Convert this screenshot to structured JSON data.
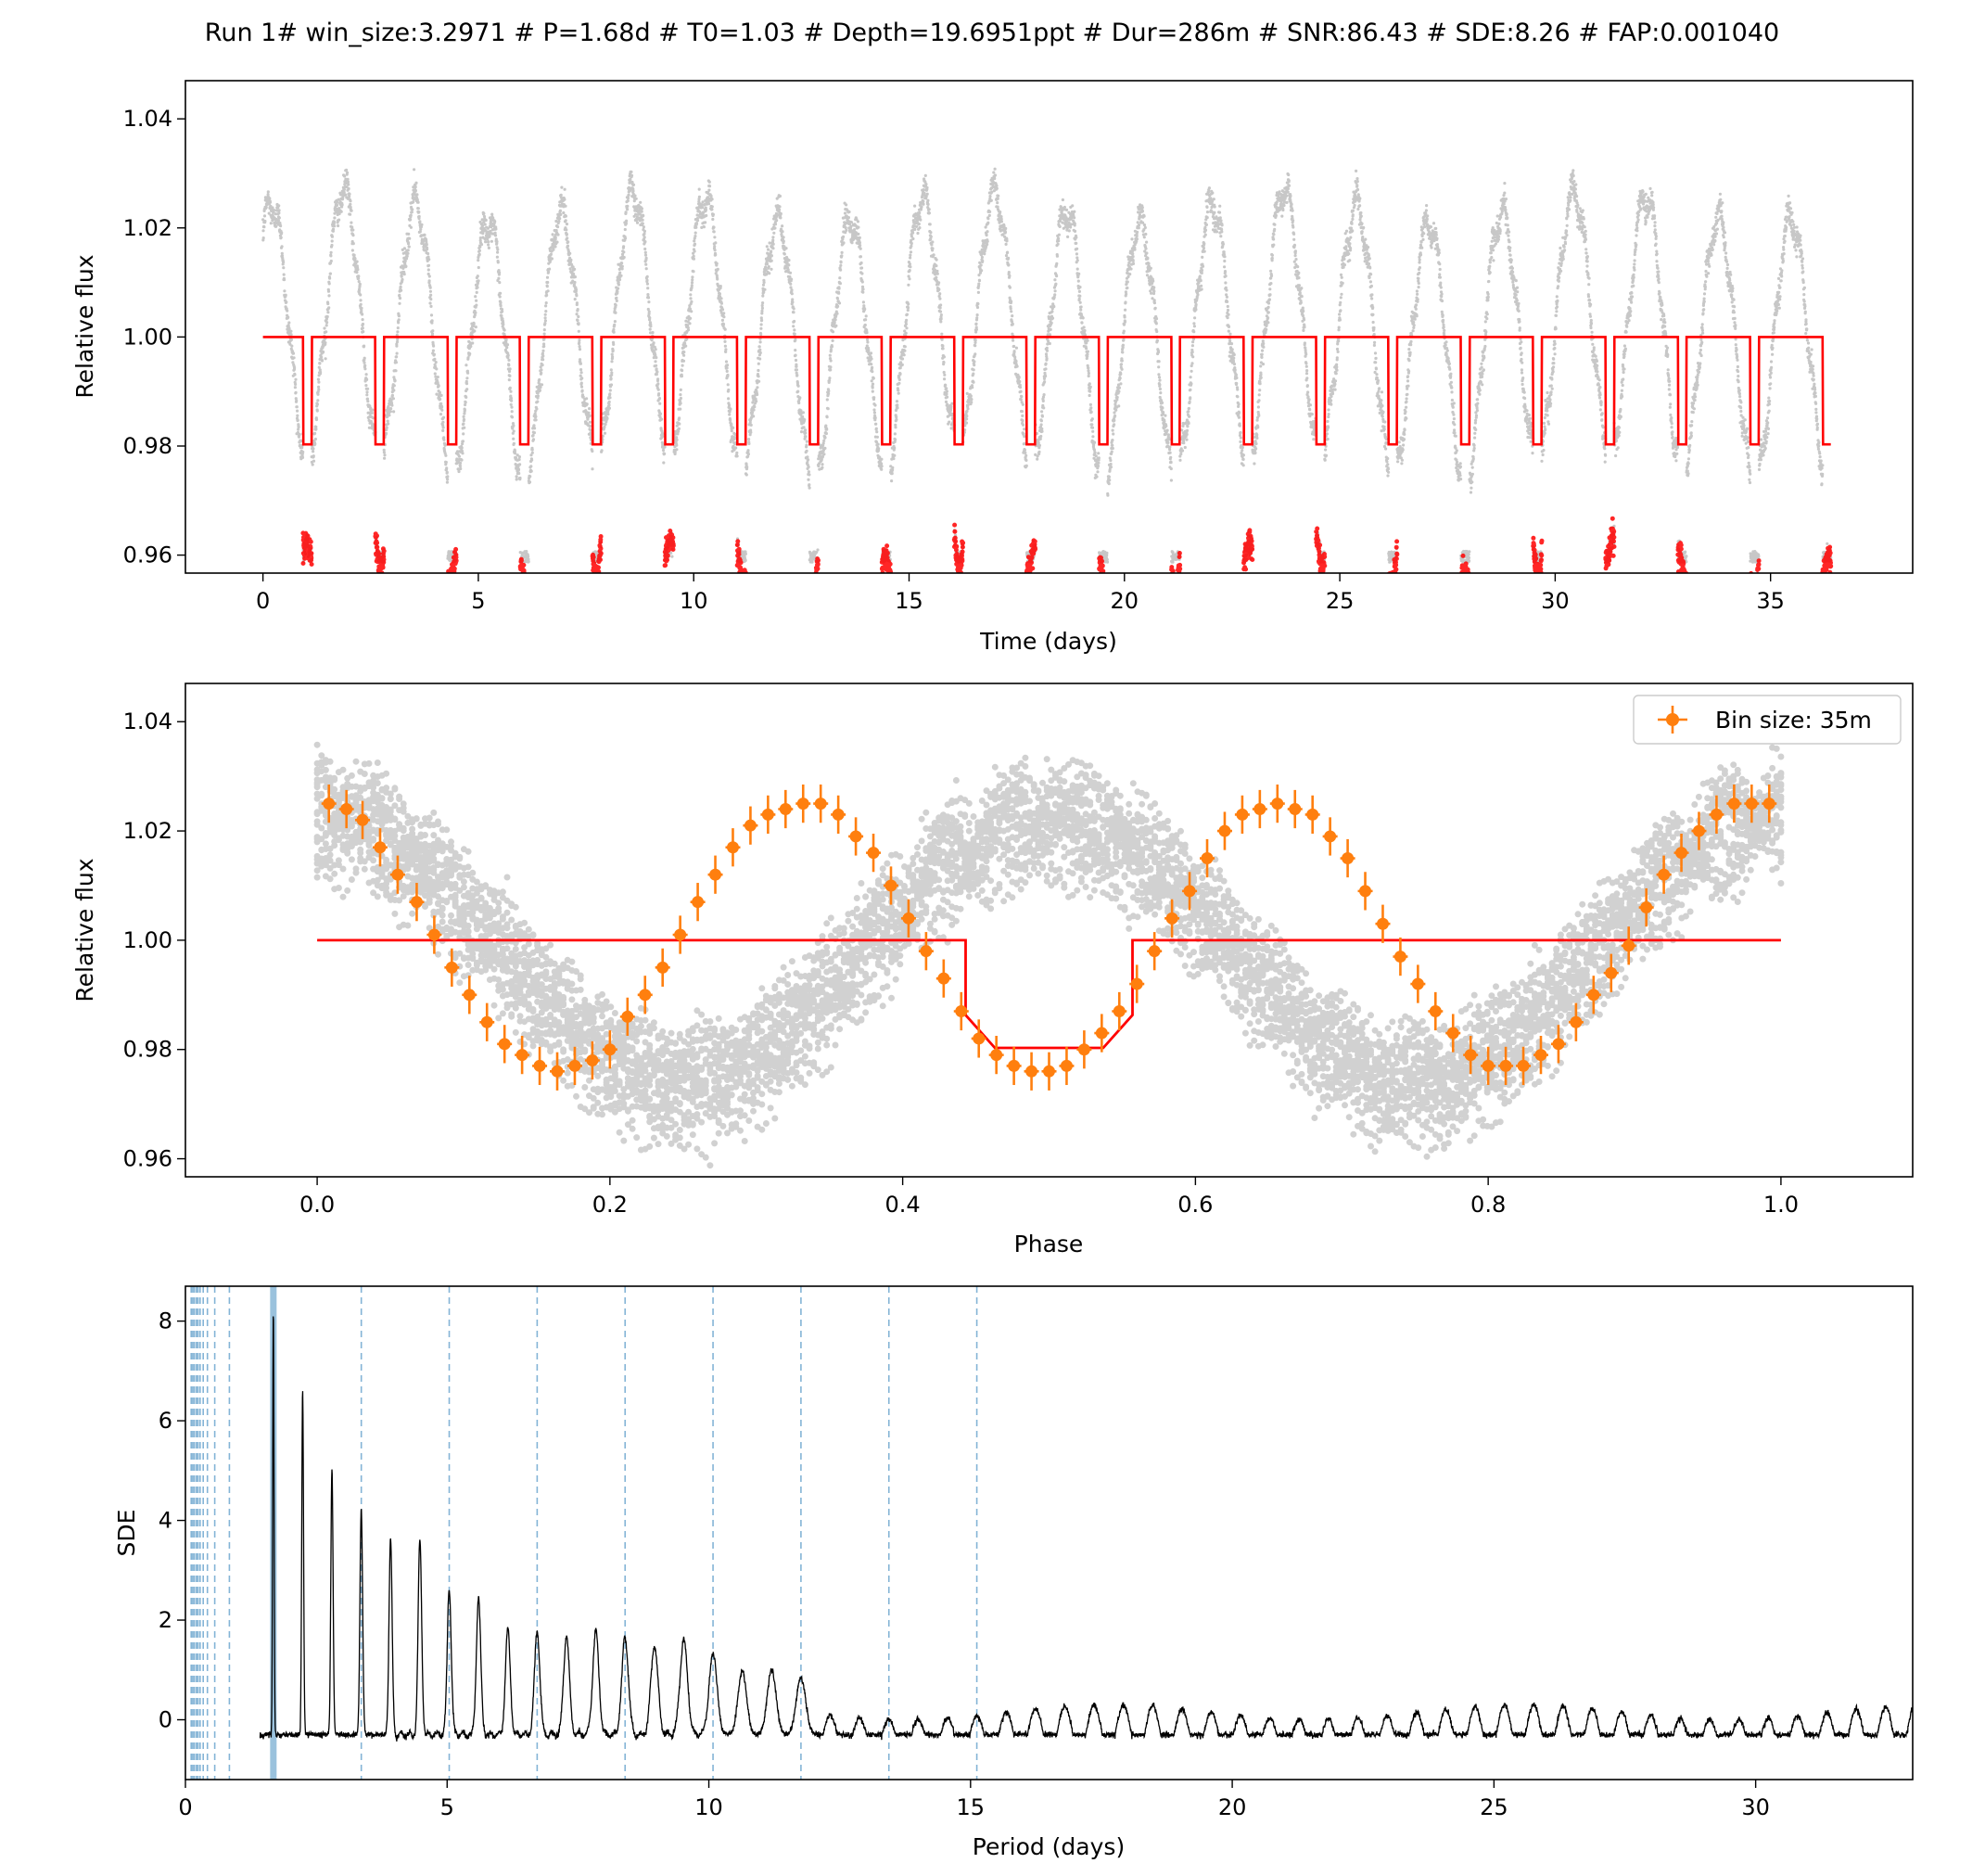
{
  "figure": {
    "title": "Run 1# win_size:3.2971 # P=1.68d # T0=1.03 # Depth=19.6951ppt # Dur=286m # SNR:86.43 # SDE:8.26 # FAP:0.001040"
  },
  "colors": {
    "data_points": "#000000",
    "model": "#ff0000",
    "binned": "#ff7f0e",
    "period_lines": "#1f77b4",
    "periodogram": "#000000"
  },
  "chart_data": [
    {
      "type": "scatter",
      "name": "light-curve",
      "xlabel": "Time (days)",
      "ylabel": "Relative flux",
      "xlim": [
        -1.8,
        38.3
      ],
      "ylim": [
        0.9567,
        1.047
      ],
      "xticks": [
        0,
        5,
        10,
        15,
        20,
        25,
        30,
        35
      ],
      "xtick_labels": [
        "0",
        "5",
        "10",
        "15",
        "20",
        "25",
        "30",
        "35"
      ],
      "yticks": [
        0.96,
        0.98,
        1.0,
        1.02,
        1.04
      ],
      "ytick_labels": [
        "0.96",
        "0.98",
        "1.00",
        "1.02",
        "1.04"
      ],
      "time_range": [
        0.0,
        36.4
      ],
      "rotation_period_days": 1.68,
      "rotation_amplitude": 0.024,
      "transit_model": {
        "period": 1.68,
        "t0": 1.03,
        "depth": 0.0197,
        "duration_days": 0.199,
        "baseline": 1.0
      }
    },
    {
      "type": "scatter",
      "name": "phase-folded",
      "xlabel": "Phase",
      "ylabel": "Relative flux",
      "xlim": [
        -0.09,
        1.09
      ],
      "ylim": [
        0.9567,
        1.047
      ],
      "xticks": [
        0.0,
        0.2,
        0.4,
        0.6,
        0.8,
        1.0
      ],
      "xtick_labels": [
        "0.0",
        "0.2",
        "0.4",
        "0.6",
        "0.8",
        "1.0"
      ],
      "yticks": [
        0.96,
        0.98,
        1.0,
        1.02,
        1.04
      ],
      "ytick_labels": [
        "0.96",
        "0.98",
        "1.00",
        "1.02",
        "1.04"
      ],
      "legend": {
        "label": "Bin size: 35m",
        "position": "upper right"
      },
      "model": {
        "baseline": 1.0,
        "transit_start": 0.443,
        "transit_end": 0.557,
        "depth": 0.0197
      },
      "binned": {
        "phase": [
          0.008,
          0.02,
          0.031,
          0.043,
          0.055,
          0.068,
          0.08,
          0.092,
          0.104,
          0.116,
          0.128,
          0.14,
          0.152,
          0.164,
          0.176,
          0.188,
          0.2,
          0.212,
          0.224,
          0.236,
          0.248,
          0.26,
          0.272,
          0.284,
          0.296,
          0.308,
          0.32,
          0.332,
          0.344,
          0.356,
          0.368,
          0.38,
          0.392,
          0.404,
          0.416,
          0.428,
          0.44,
          0.452,
          0.464,
          0.476,
          0.488,
          0.5,
          0.512,
          0.524,
          0.536,
          0.548,
          0.56,
          0.572,
          0.584,
          0.596,
          0.608,
          0.62,
          0.632,
          0.644,
          0.656,
          0.668,
          0.68,
          0.692,
          0.704,
          0.716,
          0.728,
          0.74,
          0.752,
          0.764,
          0.776,
          0.788,
          0.8,
          0.812,
          0.824,
          0.836,
          0.848,
          0.86,
          0.872,
          0.884,
          0.896,
          0.908,
          0.92,
          0.932,
          0.944,
          0.956,
          0.968,
          0.98,
          0.992
        ],
        "flux": [
          1.025,
          1.024,
          1.022,
          1.017,
          1.012,
          1.007,
          1.001,
          0.995,
          0.99,
          0.985,
          0.981,
          0.979,
          0.977,
          0.976,
          0.977,
          0.978,
          0.98,
          0.986,
          0.99,
          0.995,
          1.001,
          1.007,
          1.012,
          1.017,
          1.021,
          1.023,
          1.024,
          1.025,
          1.025,
          1.023,
          1.019,
          1.016,
          1.01,
          1.004,
          0.998,
          0.993,
          0.987,
          0.982,
          0.979,
          0.977,
          0.976,
          0.976,
          0.977,
          0.98,
          0.983,
          0.987,
          0.992,
          0.998,
          1.004,
          1.009,
          1.015,
          1.02,
          1.023,
          1.024,
          1.025,
          1.024,
          1.023,
          1.019,
          1.015,
          1.009,
          1.003,
          0.997,
          0.992,
          0.987,
          0.983,
          0.979,
          0.977,
          0.977,
          0.977,
          0.979,
          0.981,
          0.985,
          0.99,
          0.994,
          0.999,
          1.006,
          1.012,
          1.016,
          1.02,
          1.023,
          1.025,
          1.025,
          1.025
        ],
        "err": [
          0.0035,
          0.0035,
          0.0035,
          0.0035,
          0.0035,
          0.0035,
          0.0035,
          0.0035,
          0.0035,
          0.0035,
          0.0035,
          0.0035,
          0.0035,
          0.0035,
          0.0035,
          0.0035,
          0.0035,
          0.0035,
          0.0035,
          0.0035,
          0.0035,
          0.0035,
          0.0035,
          0.0035,
          0.0035,
          0.0035,
          0.0035,
          0.0035,
          0.0035,
          0.0035,
          0.0035,
          0.0035,
          0.0035,
          0.0035,
          0.0035,
          0.0035,
          0.0035,
          0.0035,
          0.0035,
          0.0035,
          0.0035,
          0.0035,
          0.0035,
          0.0035,
          0.0035,
          0.0035,
          0.0035,
          0.0035,
          0.0035,
          0.0035,
          0.0035,
          0.0035,
          0.0035,
          0.0035,
          0.0035,
          0.0035,
          0.0035,
          0.0035,
          0.0035,
          0.0035,
          0.0035,
          0.0035,
          0.0035,
          0.0035,
          0.0035,
          0.0035,
          0.0035,
          0.0035,
          0.0035,
          0.0035,
          0.0035,
          0.0035,
          0.0035,
          0.0035,
          0.0035,
          0.0035,
          0.0035,
          0.0035,
          0.0035,
          0.0035,
          0.0035,
          0.0035,
          0.0035
        ]
      }
    },
    {
      "type": "line",
      "name": "periodogram",
      "xlabel": "Period (days)",
      "ylabel": "SDE",
      "xlim": [
        0,
        33
      ],
      "ylim": [
        -1.2,
        8.7
      ],
      "xticks": [
        0,
        5,
        10,
        15,
        20,
        25,
        30
      ],
      "xtick_labels": [
        "0",
        "5",
        "10",
        "15",
        "20",
        "25",
        "30"
      ],
      "yticks": [
        0,
        2,
        4,
        6,
        8
      ],
      "ytick_labels": [
        "0",
        "2",
        "4",
        "6",
        "8"
      ],
      "best_period": 1.68,
      "harmonic_lines": [
        0.11,
        0.14,
        0.17,
        0.21,
        0.24,
        0.28,
        0.34,
        0.42,
        0.56,
        0.84,
        3.36,
        5.04,
        6.72,
        8.4,
        10.08,
        11.76,
        13.44,
        15.12
      ],
      "peaks": {
        "period": [
          1.68,
          2.24,
          2.8,
          3.36,
          3.92,
          4.48,
          5.04,
          5.6,
          6.16,
          6.72,
          7.28,
          7.84,
          8.4,
          8.96,
          9.52,
          10.08,
          10.64,
          11.2,
          11.76
        ],
        "sde": [
          8.26,
          6.65,
          5.03,
          4.25,
          3.65,
          3.6,
          2.65,
          2.45,
          1.8,
          1.8,
          1.7,
          1.75,
          1.65,
          1.5,
          1.6,
          1.35,
          1.0,
          1.0,
          0.85
        ]
      }
    }
  ]
}
